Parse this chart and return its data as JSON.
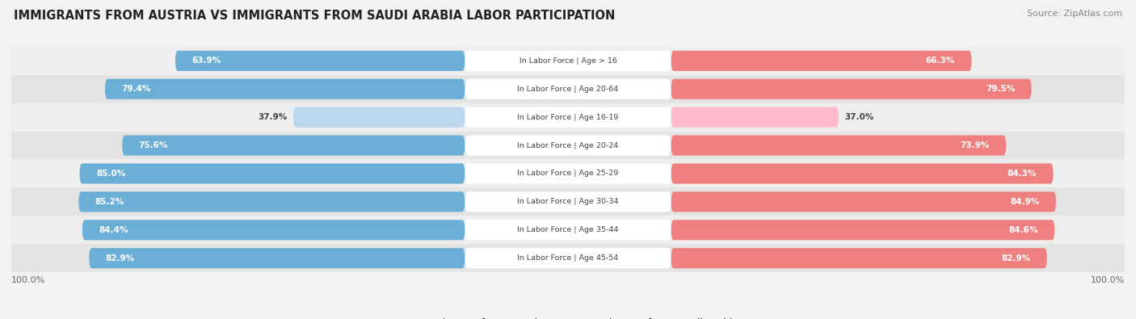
{
  "title": "IMMIGRANTS FROM AUSTRIA VS IMMIGRANTS FROM SAUDI ARABIA LABOR PARTICIPATION",
  "source": "Source: ZipAtlas.com",
  "categories": [
    "In Labor Force | Age > 16",
    "In Labor Force | Age 20-64",
    "In Labor Force | Age 16-19",
    "In Labor Force | Age 20-24",
    "In Labor Force | Age 25-29",
    "In Labor Force | Age 30-34",
    "In Labor Force | Age 35-44",
    "In Labor Force | Age 45-54"
  ],
  "austria_values": [
    63.9,
    79.4,
    37.9,
    75.6,
    85.0,
    85.2,
    84.4,
    82.9
  ],
  "saudi_values": [
    66.3,
    79.5,
    37.0,
    73.9,
    84.3,
    84.9,
    84.6,
    82.9
  ],
  "austria_color": "#6BAED6",
  "austria_color_light": "#BDD7EE",
  "saudi_color": "#F08080",
  "saudi_color_light": "#FFBBCC",
  "bar_height": 0.72,
  "max_value": 100.0,
  "legend_austria": "Immigrants from Austria",
  "legend_saudi": "Immigrants from Saudi Arabia",
  "row_colors": [
    "#f0f0f0",
    "#e8e8e8"
  ],
  "label_box_color": "#ffffff",
  "bottom_label": "100.0%"
}
